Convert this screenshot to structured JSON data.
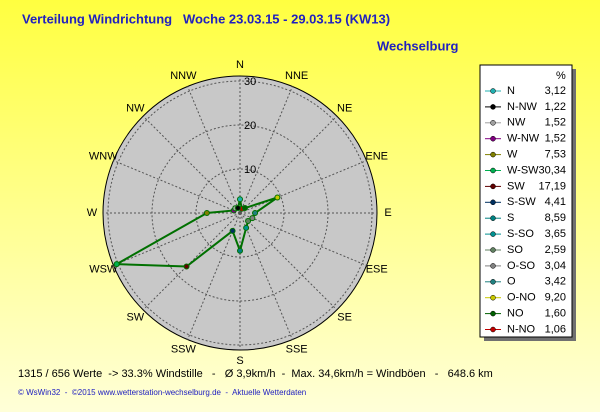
{
  "chart_data": {
    "type": "radar",
    "title": "Verteilung Windrichtung   Woche 23.03.15 - 29.03.15 (KW13)",
    "subtitle": "Wechselburg",
    "categories": [
      "N",
      "NNE",
      "NE",
      "ENE",
      "E",
      "ESE",
      "SE",
      "SSE",
      "S",
      "SSW",
      "SW",
      "WSW",
      "W",
      "WNW",
      "NW",
      "NNW"
    ],
    "legend_labels": [
      "N",
      "N-NO",
      "NO",
      "O-NO",
      "O",
      "O-SO",
      "SO",
      "S-SO",
      "S",
      "S-SW",
      "SW",
      "W-SW",
      "W",
      "W-NW",
      "NW",
      "N-NW"
    ],
    "values": [
      3.12,
      1.06,
      1.6,
      9.2,
      3.42,
      3.04,
      2.59,
      3.65,
      8.59,
      4.41,
      17.19,
      30.34,
      7.53,
      1.52,
      1.52,
      1.22
    ],
    "value_labels": [
      "3,12",
      "1,06",
      "1,60",
      "9,20",
      "3,42",
      "3,04",
      "2,59",
      "3,65",
      "8,59",
      "4,41",
      "17,19",
      "30,34",
      "7,53",
      "1,52",
      "1,52",
      "1,22"
    ],
    "colors": [
      "#20b0b0",
      "#c00000",
      "#006000",
      "#c8c800",
      "#208080",
      "#808080",
      "#608060",
      "#009090",
      "#008080",
      "#003060",
      "#600000",
      "#00b050",
      "#808000",
      "#800080",
      "#a0a0a0",
      "#000000"
    ],
    "line_color": "#007000",
    "legend_header": "%",
    "rlim": [
      0,
      30
    ],
    "rticks": [
      10,
      20,
      30
    ],
    "grid": true,
    "footer": "1315 / 656 Werte  -> 33.3% Windstille   -   Ø 3,9km/h  -  Max. 34,6km/h = Windböen   -   648.6 km",
    "credits": "© WsWin32  -  ©2015 www.wetterstation-wechselburg.de  -  Aktuelle Wetterdaten"
  }
}
